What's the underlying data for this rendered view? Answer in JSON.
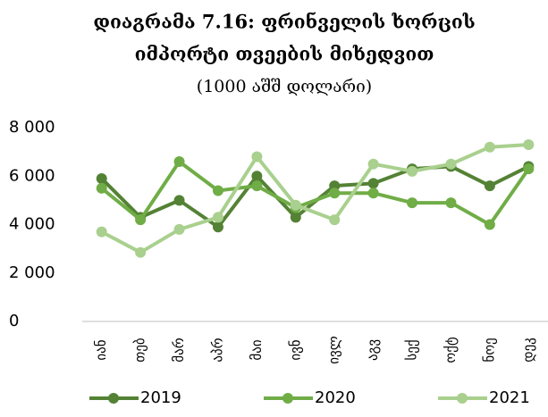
{
  "chart_data": {
    "type": "line",
    "title": "დიაგრამა 7.16: ფრინველის ხორცის",
    "title_line2": "იმპორტი თვეების მიხედვით",
    "subtitle": "(1000 აშშ დოლარი)",
    "categories": [
      "იან",
      "თებ",
      "მარ",
      "აპრ",
      "მაი",
      "ივნ",
      "ივლ",
      "აგვ",
      "სექ",
      "ოქტ",
      "ნოე",
      "დეკ"
    ],
    "series": [
      {
        "name": "2019",
        "color": "#548235",
        "values": [
          5900,
          4300,
          5000,
          3900,
          6000,
          4300,
          5600,
          5700,
          6300,
          6400,
          5600,
          6400
        ]
      },
      {
        "name": "2020",
        "color": "#70ad47",
        "values": [
          5500,
          4200,
          6600,
          5400,
          5600,
          4700,
          5300,
          5300,
          4900,
          4900,
          4000,
          6300
        ]
      },
      {
        "name": "2021",
        "color": "#a9d08e",
        "values": [
          3700,
          2850,
          3800,
          4300,
          6800,
          4800,
          4200,
          6500,
          6200,
          6500,
          7200,
          7300
        ]
      }
    ],
    "ylim": [
      0,
      8000
    ],
    "yticks": [
      0,
      {
        "value": 2000,
        "label": "2 000"
      },
      {
        "value": 4000,
        "label": "4 000"
      },
      {
        "value": 6000,
        "label": "6 000"
      },
      {
        "value": 8000,
        "label": "8 000"
      }
    ],
    "legend": "bottom"
  }
}
